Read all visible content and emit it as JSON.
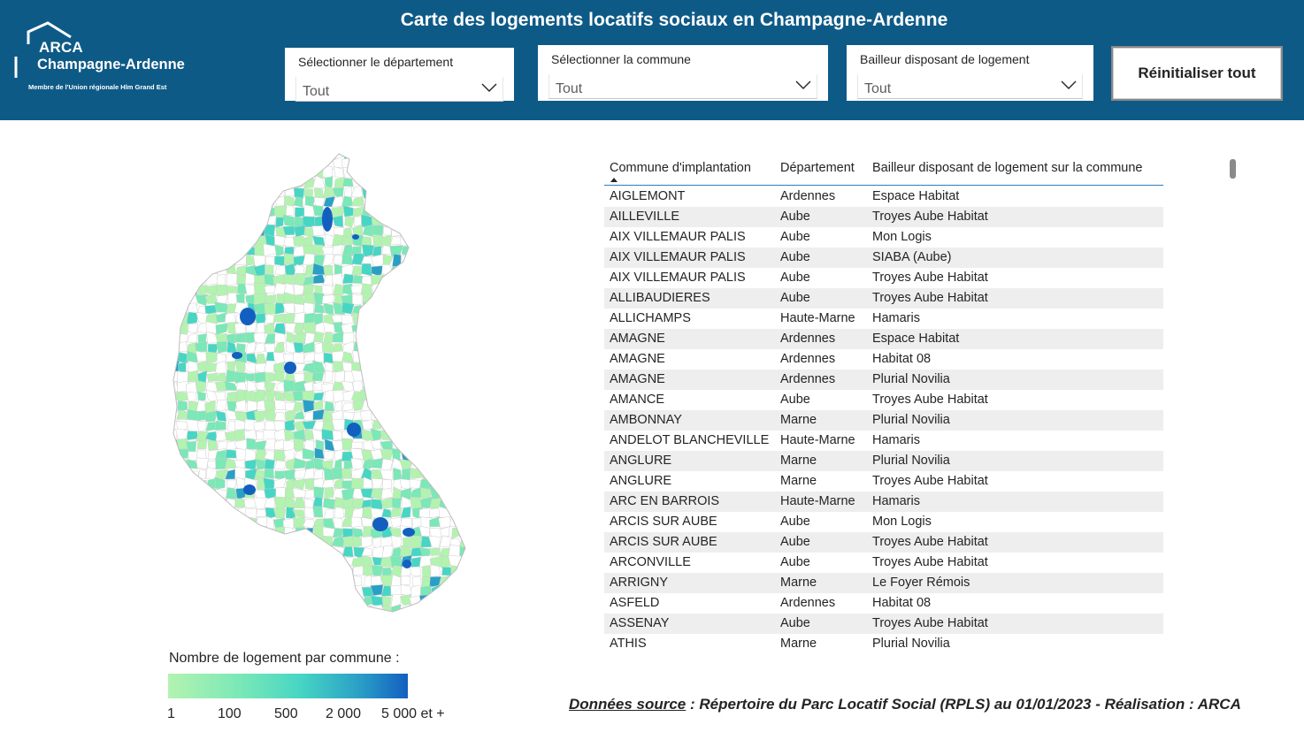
{
  "header": {
    "title": "Carte des logements locatifs sociaux en Champagne-Ardenne",
    "logo": {
      "line1": "ARCA",
      "line2": "Champagne-Ardenne",
      "line3": "Membre de l'Union régionale Hlm Grand Est"
    },
    "slicers": [
      {
        "label": "Sélectionner le département",
        "value": "Tout"
      },
      {
        "label": "Sélectionner la commune",
        "value": "Tout"
      },
      {
        "label": "Bailleur disposant de logement",
        "value": "Tout"
      }
    ],
    "reset_label": "Réinitialiser tout"
  },
  "legend": {
    "title": "Nombre de logement par commune :",
    "ticks": [
      "1",
      "100",
      "500",
      "2 000",
      "5 000 et +"
    ],
    "colors": [
      "#b3f3b0",
      "#7ae8b7",
      "#47d6c4",
      "#2a9fc6",
      "#135fc0"
    ]
  },
  "table": {
    "columns": [
      "Commune d'implantation",
      "Département",
      "Bailleur disposant de logement sur la commune"
    ],
    "rows": [
      [
        "AIGLEMONT",
        "Ardennes",
        "Espace Habitat"
      ],
      [
        "AILLEVILLE",
        "Aube",
        "Troyes Aube Habitat"
      ],
      [
        "AIX VILLEMAUR PALIS",
        "Aube",
        "Mon Logis"
      ],
      [
        "AIX VILLEMAUR PALIS",
        "Aube",
        "SIABA (Aube)"
      ],
      [
        "AIX VILLEMAUR PALIS",
        "Aube",
        "Troyes Aube Habitat"
      ],
      [
        "ALLIBAUDIERES",
        "Aube",
        "Troyes Aube Habitat"
      ],
      [
        "ALLICHAMPS",
        "Haute-Marne",
        "Hamaris"
      ],
      [
        "AMAGNE",
        "Ardennes",
        "Espace Habitat"
      ],
      [
        "AMAGNE",
        "Ardennes",
        "Habitat 08"
      ],
      [
        "AMAGNE",
        "Ardennes",
        "Plurial Novilia"
      ],
      [
        "AMANCE",
        "Aube",
        "Troyes Aube Habitat"
      ],
      [
        "AMBONNAY",
        "Marne",
        "Plurial Novilia"
      ],
      [
        "ANDELOT BLANCHEVILLE",
        "Haute-Marne",
        "Hamaris"
      ],
      [
        "ANGLURE",
        "Marne",
        "Plurial Novilia"
      ],
      [
        "ANGLURE",
        "Marne",
        "Troyes Aube Habitat"
      ],
      [
        "ARC EN BARROIS",
        "Haute-Marne",
        "Hamaris"
      ],
      [
        "ARCIS SUR AUBE",
        "Aube",
        "Mon Logis"
      ],
      [
        "ARCIS SUR AUBE",
        "Aube",
        "Troyes Aube Habitat"
      ],
      [
        "ARCONVILLE",
        "Aube",
        "Troyes Aube Habitat"
      ],
      [
        "ARRIGNY",
        "Marne",
        "Le Foyer Rémois"
      ],
      [
        "ASFELD",
        "Ardennes",
        "Habitat 08"
      ],
      [
        "ASSENAY",
        "Aube",
        "Troyes Aube Habitat"
      ],
      [
        "ATHIS",
        "Marne",
        "Plurial Novilia"
      ]
    ]
  },
  "footer": {
    "source_label": "Données source",
    "source_text": " : Répertoire du Parc Locatif Social (RPLS) au 01/01/2023 - Réalisation : ARCA"
  }
}
